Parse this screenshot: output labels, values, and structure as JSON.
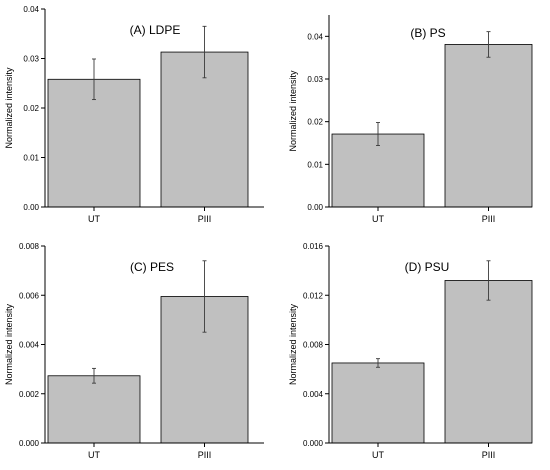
{
  "chart_data": [
    {
      "type": "bar",
      "title": "(A) LDPE",
      "ylabel": "Normalized intensity",
      "xlabel": "",
      "categories": [
        "UT",
        "PIII"
      ],
      "values": [
        0.0258,
        0.0313
      ],
      "errors": [
        0.0041,
        0.0052
      ],
      "ylim": [
        0,
        0.04
      ],
      "yticks": [
        "0.00",
        "0.01",
        "0.02",
        "0.03",
        "0.04"
      ],
      "ytick_values": [
        0,
        0.01,
        0.02,
        0.03,
        0.04
      ]
    },
    {
      "type": "bar",
      "title": "(B) PS",
      "ylabel": "Normalized intensity",
      "xlabel": "",
      "categories": [
        "UT",
        "PIII"
      ],
      "values": [
        0.0171,
        0.0381
      ],
      "errors": [
        0.0027,
        0.003
      ],
      "ylim": [
        0,
        0.045
      ],
      "yticks": [
        "0.00",
        "0.01",
        "0.02",
        "0.03",
        "0.04"
      ],
      "ytick_values": [
        0,
        0.01,
        0.02,
        0.03,
        0.04
      ]
    },
    {
      "type": "bar",
      "title": "(C) PES",
      "ylabel": "Normalized intensity",
      "xlabel": "",
      "categories": [
        "UT",
        "PIII"
      ],
      "values": [
        0.00273,
        0.00595
      ],
      "errors": [
        0.0003,
        0.00145
      ],
      "ylim": [
        0,
        0.008
      ],
      "yticks": [
        "0.000",
        "0.002",
        "0.004",
        "0.006",
        "0.008"
      ],
      "ytick_values": [
        0,
        0.002,
        0.004,
        0.006,
        0.008
      ]
    },
    {
      "type": "bar",
      "title": "(D) PSU",
      "ylabel": "Normalized intensity",
      "xlabel": "",
      "categories": [
        "UT",
        "PIII"
      ],
      "values": [
        0.0065,
        0.0132
      ],
      "errors": [
        0.00035,
        0.0016
      ],
      "ylim": [
        0,
        0.016
      ],
      "yticks": [
        "0.000",
        "0.004",
        "0.008",
        "0.012",
        "0.016"
      ],
      "ytick_values": [
        0,
        0.004,
        0.008,
        0.012,
        0.016
      ]
    }
  ],
  "colors": {
    "bar_fill": "#c0c0c0",
    "bar_stroke": "#000000",
    "error_bar": "#3a3a3a"
  }
}
